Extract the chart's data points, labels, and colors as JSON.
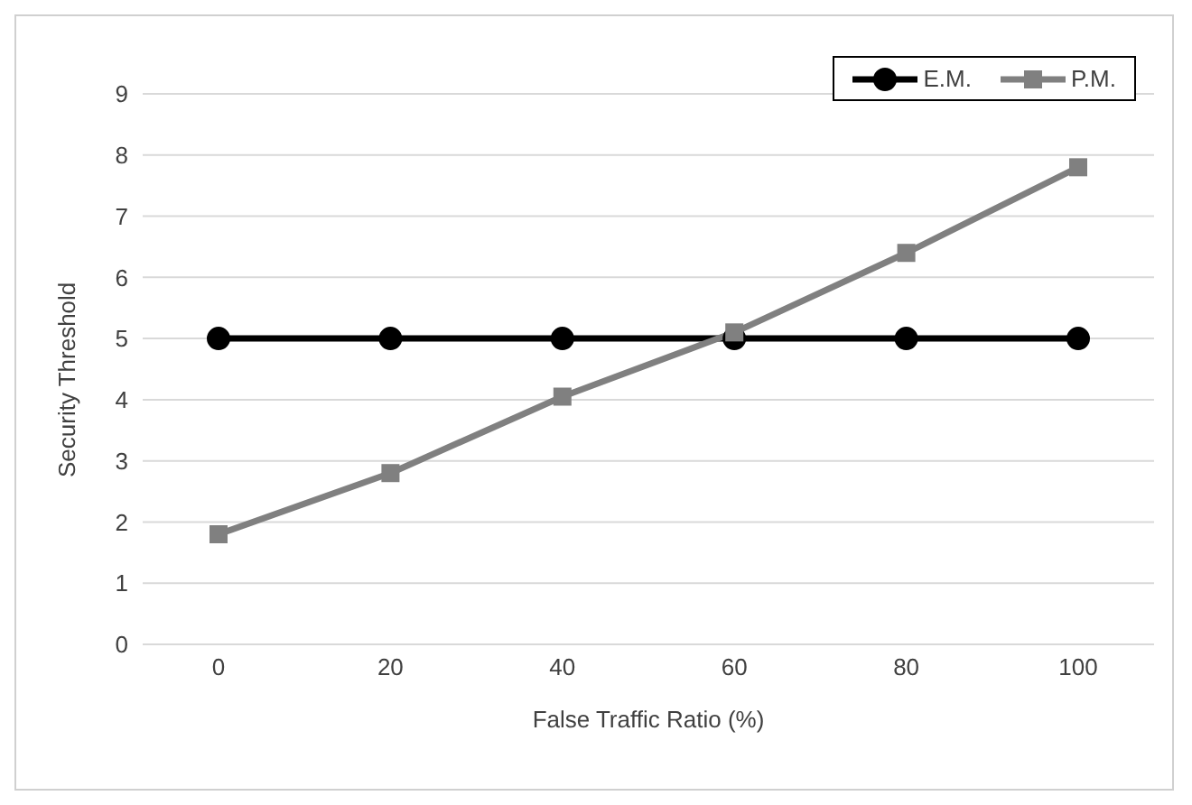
{
  "chart_data": {
    "type": "line",
    "xlabel": "False Traffic Ratio (%)",
    "ylabel": "Security Threshold",
    "categories": [
      "0",
      "20",
      "40",
      "60",
      "80",
      "100"
    ],
    "series": [
      {
        "name": "E.M.",
        "color": "#000000",
        "marker": "circle",
        "values": [
          5,
          5,
          5,
          5,
          5,
          5
        ]
      },
      {
        "name": "P.M.",
        "color": "#808080",
        "marker": "square",
        "values": [
          1.8,
          2.8,
          4.05,
          5.1,
          6.4,
          7.8
        ]
      }
    ],
    "ylim": [
      0,
      9
    ],
    "yticks": [
      0,
      1,
      2,
      3,
      4,
      5,
      6,
      7,
      8,
      9
    ],
    "grid": "y",
    "legend": "top right",
    "line_style": "solid"
  }
}
